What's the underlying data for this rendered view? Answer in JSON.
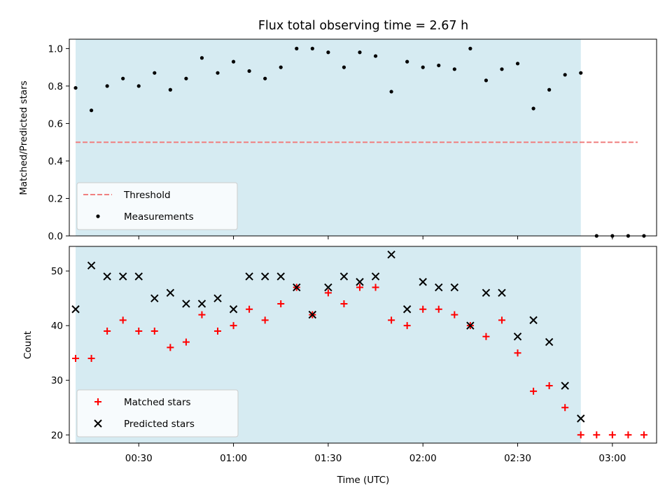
{
  "title": "Flux total observing time = 2.67 h",
  "colors": {
    "span": "#add8e6",
    "threshold": "#f08080",
    "measurement": "#000000",
    "matched": "#ff0000",
    "predicted": "#000000"
  },
  "chart_data": [
    {
      "type": "scatter",
      "name": "ratio",
      "ylabel": "Matched/Predicted stars",
      "xlabel": "",
      "xlim": [
        "00:08",
        "03:14"
      ],
      "ylim": [
        0,
        1.05
      ],
      "yticks": [
        "0.0",
        "0.2",
        "0.4",
        "0.6",
        "0.8",
        "1.0"
      ],
      "observing_window": [
        "00:10",
        "02:50"
      ],
      "legend_position": "lower-left",
      "threshold": {
        "label": "Threshold",
        "value": 0.5,
        "x_range": [
          "00:10",
          "03:08"
        ]
      },
      "series": [
        {
          "name": "Measurements",
          "x": [
            "00:10",
            "00:15",
            "00:20",
            "00:25",
            "00:30",
            "00:35",
            "00:40",
            "00:45",
            "00:50",
            "00:55",
            "01:00",
            "01:05",
            "01:10",
            "01:15",
            "01:20",
            "01:25",
            "01:30",
            "01:35",
            "01:40",
            "01:45",
            "01:50",
            "01:55",
            "02:00",
            "02:05",
            "02:10",
            "02:15",
            "02:20",
            "02:25",
            "02:30",
            "02:35",
            "02:40",
            "02:45",
            "02:50",
            "02:55",
            "03:00",
            "03:05",
            "03:10"
          ],
          "y": [
            0.79,
            0.67,
            0.8,
            0.84,
            0.8,
            0.87,
            0.78,
            0.84,
            0.95,
            0.87,
            0.93,
            0.88,
            0.84,
            0.9,
            1.0,
            1.0,
            0.98,
            0.9,
            0.98,
            0.96,
            0.77,
            0.93,
            0.9,
            0.91,
            0.89,
            1.0,
            0.83,
            0.89,
            0.92,
            0.68,
            0.78,
            0.86,
            0.87,
            0.0,
            0.0,
            0.0,
            0.0
          ]
        }
      ]
    },
    {
      "type": "scatter",
      "name": "counts",
      "ylabel": "Count",
      "xlabel": "Time (UTC)",
      "xlim": [
        "00:08",
        "03:14"
      ],
      "ylim": [
        18.5,
        54.5
      ],
      "yticks": [
        "20",
        "30",
        "40",
        "50"
      ],
      "xticks": [
        "00:30",
        "01:00",
        "01:30",
        "02:00",
        "02:30",
        "03:00"
      ],
      "observing_window": [
        "00:10",
        "02:50"
      ],
      "legend_position": "lower-left",
      "series": [
        {
          "name": "Matched stars",
          "marker": "+",
          "x": [
            "00:10",
            "00:15",
            "00:20",
            "00:25",
            "00:30",
            "00:35",
            "00:40",
            "00:45",
            "00:50",
            "00:55",
            "01:00",
            "01:05",
            "01:10",
            "01:15",
            "01:20",
            "01:25",
            "01:30",
            "01:35",
            "01:40",
            "01:45",
            "01:50",
            "01:55",
            "02:00",
            "02:05",
            "02:10",
            "02:15",
            "02:20",
            "02:25",
            "02:30",
            "02:35",
            "02:40",
            "02:45",
            "02:50",
            "02:55",
            "03:00",
            "03:05",
            "03:10"
          ],
          "y": [
            34,
            34,
            39,
            41,
            39,
            39,
            36,
            37,
            42,
            39,
            40,
            43,
            41,
            44,
            47,
            42,
            46,
            44,
            47,
            47,
            41,
            40,
            43,
            43,
            42,
            40,
            38,
            41,
            35,
            28,
            29,
            25,
            20,
            20,
            20,
            20,
            20
          ]
        },
        {
          "name": "Predicted stars",
          "marker": "x",
          "x": [
            "00:10",
            "00:15",
            "00:20",
            "00:25",
            "00:30",
            "00:35",
            "00:40",
            "00:45",
            "00:50",
            "00:55",
            "01:00",
            "01:05",
            "01:10",
            "01:15",
            "01:20",
            "01:25",
            "01:30",
            "01:35",
            "01:40",
            "01:45",
            "01:50",
            "01:55",
            "02:00",
            "02:05",
            "02:10",
            "02:15",
            "02:20",
            "02:25",
            "02:30",
            "02:35",
            "02:40",
            "02:45",
            "02:50"
          ],
          "y": [
            43,
            51,
            49,
            49,
            49,
            45,
            46,
            44,
            44,
            45,
            43,
            49,
            49,
            49,
            47,
            42,
            47,
            49,
            48,
            49,
            53,
            43,
            48,
            47,
            47,
            40,
            46,
            46,
            38,
            41,
            37,
            29,
            23
          ]
        }
      ]
    }
  ]
}
